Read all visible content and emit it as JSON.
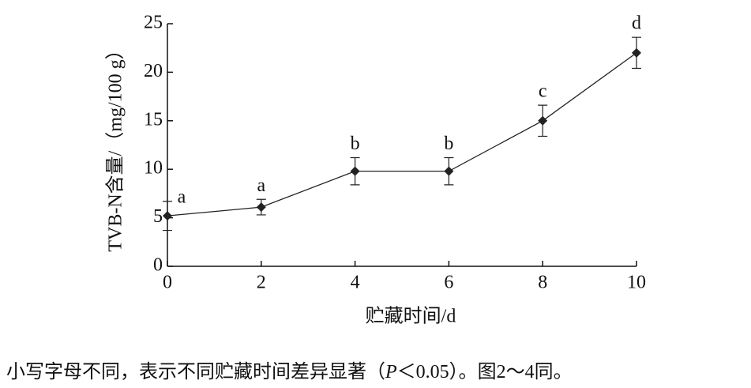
{
  "chart_data": {
    "type": "line",
    "x_label": "贮藏时间/d",
    "y_label": "TVB-N含量/（mg/100 g）",
    "x": [
      0,
      2,
      4,
      6,
      8,
      10
    ],
    "series": [
      {
        "color": "#222222",
        "values": [
          5.2,
          6.1,
          9.8,
          9.8,
          15.0,
          22.0
        ],
        "errors": [
          1.5,
          0.8,
          1.4,
          1.4,
          1.6,
          1.6
        ],
        "labels": [
          "a",
          "a",
          "b",
          "b",
          "c",
          "d"
        ]
      }
    ],
    "xlim": [
      0,
      10
    ],
    "xticks": [
      0,
      2,
      4,
      6,
      8,
      10
    ],
    "ylim": [
      0,
      25
    ],
    "yticks": [
      0,
      5,
      10,
      15,
      20,
      25
    ]
  },
  "caption": [
    "小写字母不同，表示不同贮藏时间差异显著（",
    "P",
    "＜0.05）。图2～4同。"
  ]
}
